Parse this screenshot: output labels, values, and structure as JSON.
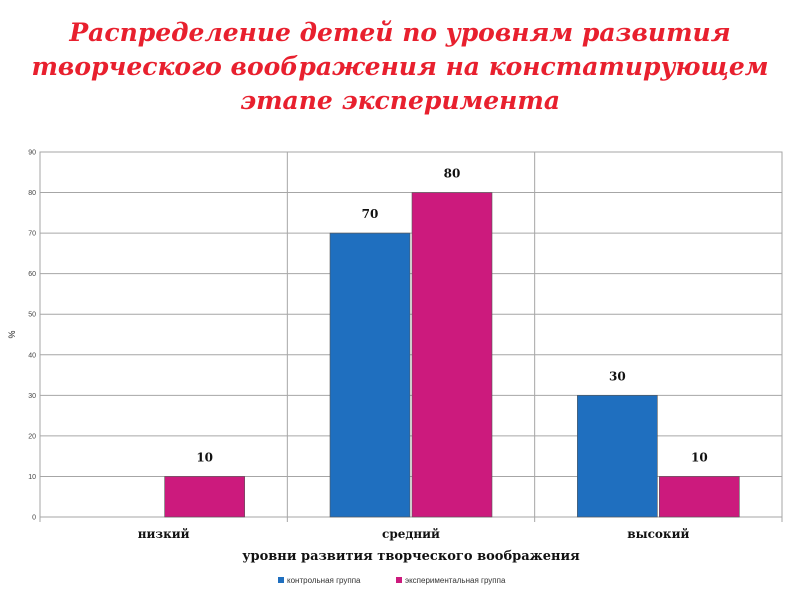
{
  "title_lines": [
    "Распределение детей по уровням развития",
    "творческого воображения на констатирующем",
    "этапе эксперимента"
  ],
  "colors": {
    "title": "#e8202e",
    "series_1": "#1f6fbf",
    "series_2": "#cc1a7d",
    "grid": "#a6a6a6"
  },
  "chart_data": {
    "type": "bar",
    "categories": [
      "низкий",
      "средний",
      "высокий"
    ],
    "series": [
      {
        "name": "контрольная группа",
        "values": [
          null,
          70,
          30
        ],
        "labels": [
          "",
          "70",
          "30"
        ]
      },
      {
        "name": "экспериментальная группа",
        "values": [
          10,
          80,
          10
        ],
        "labels": [
          "10",
          "80",
          "10"
        ]
      }
    ],
    "xlabel": "уровни развития творческого воображения",
    "ylabel": "%",
    "ylim": [
      0,
      90
    ],
    "yticks": [
      "0",
      "10",
      "20",
      "30",
      "40",
      "50",
      "60",
      "70",
      "80",
      "90"
    ],
    "grid": true,
    "legend_position": "bottom"
  }
}
